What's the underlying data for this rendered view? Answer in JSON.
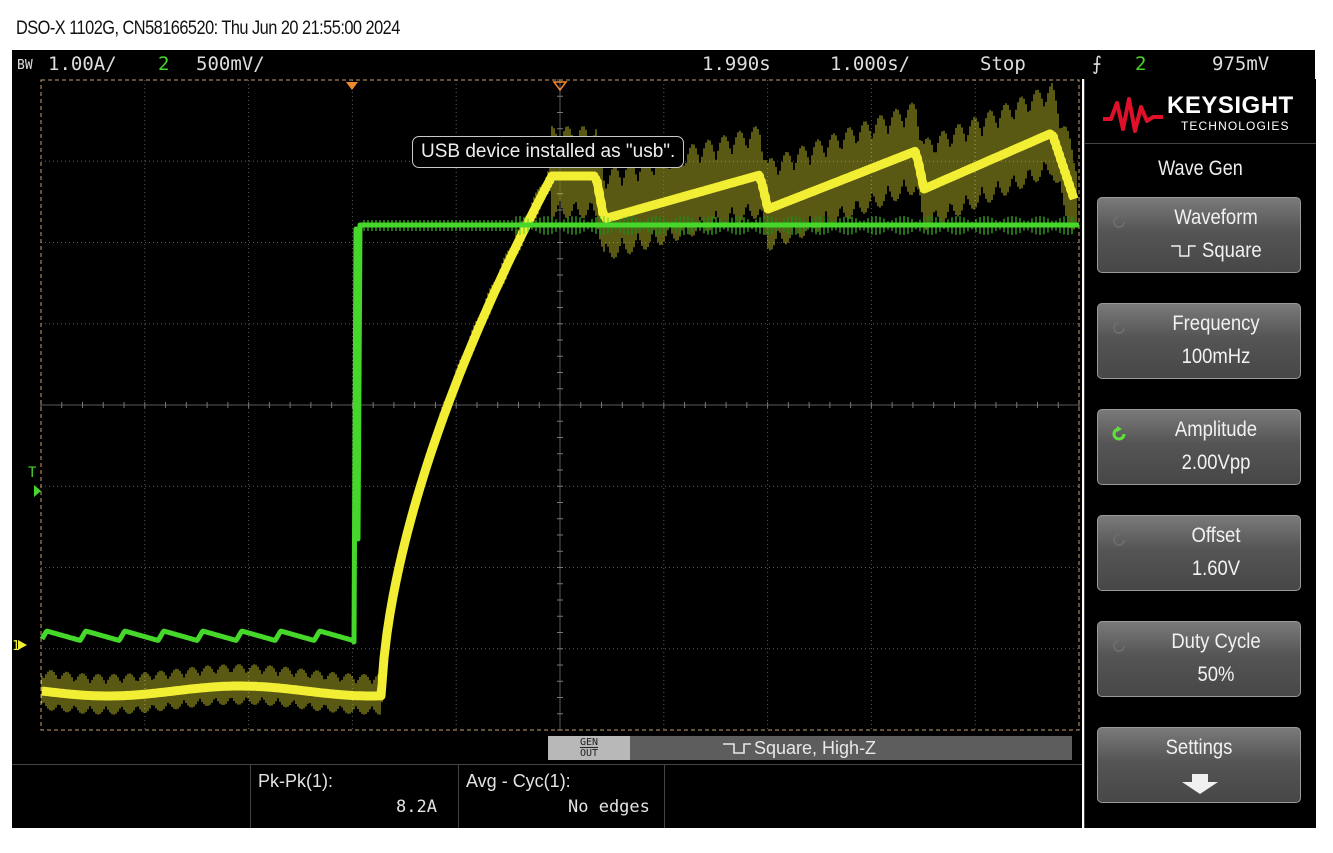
{
  "window": {
    "title": "DSO-X 1102G, CN58166520: Thu Jun 20 21:55:00 2024"
  },
  "status_bar": {
    "bw": "BW",
    "ch1_scale": "1.00A/",
    "ch2_num": "2",
    "ch2_scale": "500mV/",
    "time_delay": "1.990s",
    "time_scale": "1.000s/",
    "run_state": "Stop",
    "trigger_source": "2",
    "trigger_level": "975mV"
  },
  "screen": {
    "notice": "USB device installed as \"usb\".",
    "trigger_marker": "T",
    "ground_marker": "1"
  },
  "wavegen_bar": {
    "gen_out_line1": "GEN",
    "gen_out_line2": "OUT",
    "status": "Square, High-Z"
  },
  "measurements": [
    {
      "label": "Pk-Pk(1):",
      "value": "8.2A"
    },
    {
      "label": "Avg - Cyc(1):",
      "value": "No edges"
    }
  ],
  "panel": {
    "brand": "KEYSIGHT",
    "brand_sub": "TECHNOLOGIES",
    "menu_title": "Wave Gen",
    "softkeys": [
      {
        "label": "Waveform",
        "value": "Square",
        "active": false
      },
      {
        "label": "Frequency",
        "value": "100mHz",
        "active": false
      },
      {
        "label": "Amplitude",
        "value": "2.00Vpp",
        "active": true
      },
      {
        "label": "Offset",
        "value": "1.60V",
        "active": false
      },
      {
        "label": "Duty Cycle",
        "value": "50%",
        "active": false
      },
      {
        "label": "Settings",
        "value": "",
        "active": false
      }
    ]
  },
  "colors": {
    "ch1": "#f2ee34",
    "ch2": "#46d72b",
    "grid": "#5a5a5a",
    "marker": "#f08a2e",
    "active_knob": "#5fe03a"
  }
}
